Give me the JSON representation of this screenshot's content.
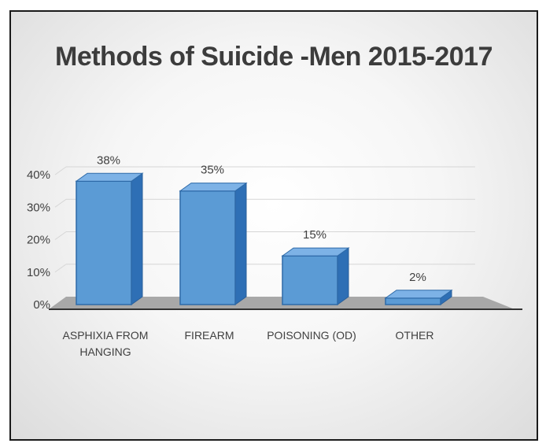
{
  "chart_data": {
    "type": "bar",
    "title": "Methods of Suicide -Men 2015-2017",
    "categories": [
      [
        "ASPHIXIA FROM",
        "HANGING"
      ],
      [
        "FIREARM"
      ],
      [
        "POISONING (OD)"
      ],
      [
        "OTHER"
      ]
    ],
    "values": [
      38,
      35,
      15,
      2
    ],
    "data_labels": [
      "38%",
      "35%",
      "15%",
      "2%"
    ],
    "y_ticks": [
      "0%",
      "10%",
      "20%",
      "30%",
      "40%"
    ],
    "ylim": [
      0,
      40
    ],
    "grid": true,
    "legend": "none",
    "bar_color": "#5b9bd5",
    "bar_side_color": "#2e6fb5",
    "bar_top_color": "#7db2e6"
  }
}
